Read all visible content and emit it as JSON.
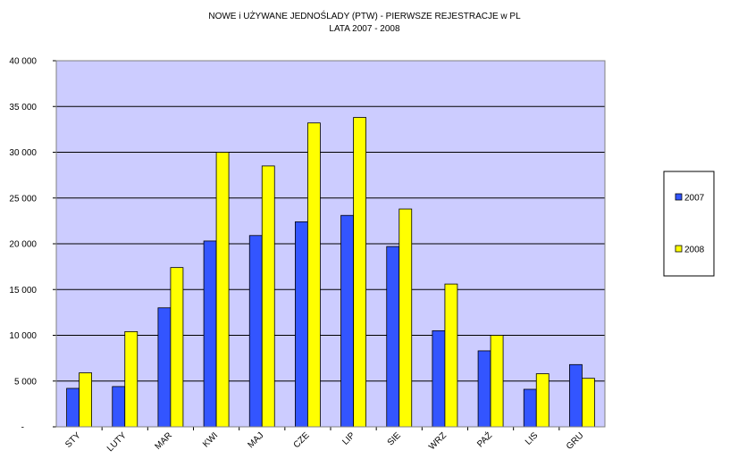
{
  "chart_data": {
    "type": "bar",
    "title": [
      "NOWE i UŻYWANE JEDNOŚLADY (PTW) - PIERWSZE REJESTRACJE w PL",
      "LATA 2007 - 2008"
    ],
    "xlabel": "",
    "ylabel": "",
    "ylim": [
      0,
      40000
    ],
    "yticks": [
      0,
      5000,
      10000,
      15000,
      20000,
      25000,
      30000,
      35000,
      40000
    ],
    "ytick_labels": [
      "-",
      "5 000",
      "10 000",
      "15 000",
      "20 000",
      "25 000",
      "30 000",
      "35 000",
      "40 000"
    ],
    "categories": [
      "STY",
      "LUTY",
      "MAR",
      "KWI",
      "MAJ",
      "CZE",
      "LIP",
      "SIE",
      "WRZ",
      "PAŹ",
      "LIS",
      "GRU"
    ],
    "series": [
      {
        "name": "2007",
        "color": "#3355ff",
        "values": [
          4200,
          4400,
          13000,
          20300,
          20900,
          22400,
          23100,
          19700,
          10500,
          8300,
          4100,
          6800
        ]
      },
      {
        "name": "2008",
        "color": "#ffff00",
        "values": [
          5900,
          10400,
          17400,
          30000,
          28500,
          33200,
          33800,
          23800,
          15600,
          10000,
          5800,
          5300
        ]
      }
    ],
    "grid": true,
    "plot_background": "#ccccff",
    "legend_position": "right"
  }
}
